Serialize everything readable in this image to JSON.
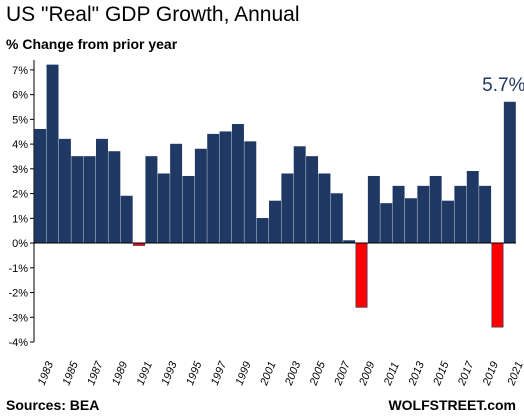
{
  "header": {
    "title": "US \"Real\" GDP Growth, Annual",
    "subtitle": "% Change from prior year"
  },
  "footer": {
    "source": "Sources: BEA",
    "brand": "WOLFSTREET.com"
  },
  "chart_data": {
    "type": "bar",
    "title": "US \"Real\" GDP Growth, Annual",
    "subtitle": "% Change from prior year",
    "xlabel": "",
    "ylabel": "",
    "categories": [
      1983,
      1984,
      1985,
      1986,
      1987,
      1988,
      1989,
      1990,
      1991,
      1992,
      1993,
      1994,
      1995,
      1996,
      1997,
      1998,
      1999,
      2000,
      2001,
      2002,
      2003,
      2004,
      2005,
      2006,
      2007,
      2008,
      2009,
      2010,
      2011,
      2012,
      2013,
      2014,
      2015,
      2016,
      2017,
      2018,
      2019,
      2020,
      2021
    ],
    "values": [
      4.6,
      7.2,
      4.2,
      3.5,
      3.5,
      4.2,
      3.7,
      1.9,
      -0.1,
      3.5,
      2.8,
      4.0,
      2.7,
      3.8,
      4.4,
      4.5,
      4.8,
      4.1,
      1.0,
      1.7,
      2.8,
      3.9,
      3.5,
      2.8,
      2.0,
      0.1,
      -2.6,
      2.7,
      1.6,
      2.3,
      1.8,
      2.3,
      2.7,
      1.7,
      2.3,
      2.9,
      2.3,
      -3.4,
      5.7
    ],
    "x_tick_labels": [
      "1983",
      "1985",
      "1987",
      "1989",
      "1991",
      "1993",
      "1995",
      "1997",
      "1999",
      "2001",
      "2003",
      "2005",
      "2007",
      "2009",
      "2011",
      "2013",
      "2015",
      "2017",
      "2019",
      "2021"
    ],
    "y_ticks": [
      -4,
      -3,
      -2,
      -1,
      0,
      1,
      2,
      3,
      4,
      5,
      6,
      7
    ],
    "y_tick_labels": [
      "-4%",
      "-3%",
      "-2%",
      "-1%",
      "0%",
      "1%",
      "2%",
      "3%",
      "4%",
      "5%",
      "6%",
      "7%"
    ],
    "ylim": [
      -4,
      7.4
    ],
    "grid": false,
    "legend": "none",
    "annotation": {
      "category": 2021,
      "text": "5.7%"
    },
    "colors": {
      "positive": "#1f3864",
      "negative": "#ff0000",
      "axis": "#000000"
    }
  }
}
